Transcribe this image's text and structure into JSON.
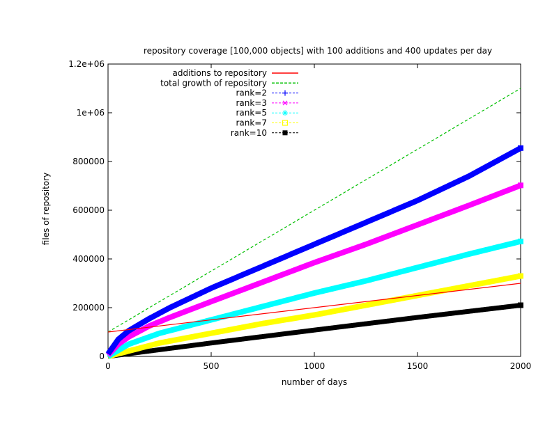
{
  "chart_data": {
    "type": "line",
    "title": "repository coverage [100,000 objects] with 100 additions and 400 updates per day",
    "xlabel": "number of days",
    "ylabel": "files of repository",
    "xlim": [
      0,
      2000
    ],
    "ylim": [
      0,
      1200000
    ],
    "x_ticks": [
      0,
      500,
      1000,
      1500,
      2000
    ],
    "x_tick_labels": [
      "0",
      "500",
      "1000",
      "1500",
      "2000"
    ],
    "y_ticks": [
      0,
      200000,
      400000,
      600000,
      800000,
      1000000,
      1200000
    ],
    "y_tick_labels": [
      "0",
      "200000",
      "400000",
      "600000",
      "800000",
      "1e+06",
      "1.2e+06"
    ],
    "grid": false,
    "legend_position": "top-left",
    "series": [
      {
        "name": "additions to repository",
        "color": "#ff0000",
        "style": "solid",
        "marker": "none",
        "x": [
          0,
          2000
        ],
        "y": [
          100000,
          300000
        ]
      },
      {
        "name": "total growth of repository",
        "color": "#00c000",
        "style": "dashed",
        "marker": "none",
        "x": [
          0,
          2000
        ],
        "y": [
          100000,
          1100000
        ]
      },
      {
        "name": "rank=2",
        "color": "#0000ff",
        "style": "dashed",
        "marker": "plus",
        "x": [
          0,
          50,
          100,
          200,
          300,
          500,
          750,
          1000,
          1250,
          1500,
          1750,
          2000
        ],
        "y": [
          10000,
          70000,
          105000,
          155000,
          200000,
          280000,
          370000,
          460000,
          550000,
          640000,
          740000,
          855000
        ]
      },
      {
        "name": "rank=3",
        "color": "#ff00ff",
        "style": "dashed",
        "marker": "x",
        "x": [
          0,
          50,
          100,
          200,
          300,
          500,
          750,
          1000,
          1250,
          1500,
          1750,
          2000
        ],
        "y": [
          5000,
          50000,
          80000,
          125000,
          160000,
          225000,
          305000,
          385000,
          460000,
          540000,
          620000,
          702000
        ]
      },
      {
        "name": "rank=5",
        "color": "#00ffff",
        "style": "dashed",
        "marker": "star",
        "x": [
          0,
          100,
          250,
          500,
          750,
          1000,
          1250,
          1500,
          1750,
          2000
        ],
        "y": [
          0,
          50000,
          95000,
          150000,
          205000,
          260000,
          310000,
          365000,
          420000,
          472000
        ]
      },
      {
        "name": "rank=7",
        "color": "#ffff00",
        "style": "dashed",
        "marker": "box",
        "x": [
          0,
          250,
          500,
          750,
          1000,
          1250,
          1500,
          1750,
          2000
        ],
        "y": [
          0,
          55000,
          95000,
          135000,
          170000,
          210000,
          250000,
          290000,
          330000
        ]
      },
      {
        "name": "rank=10",
        "color": "#000000",
        "style": "dashed",
        "marker": "filled-box",
        "x": [
          0,
          500,
          1000,
          1500,
          2000
        ],
        "y": [
          0,
          55000,
          108000,
          160000,
          210000
        ]
      }
    ]
  }
}
